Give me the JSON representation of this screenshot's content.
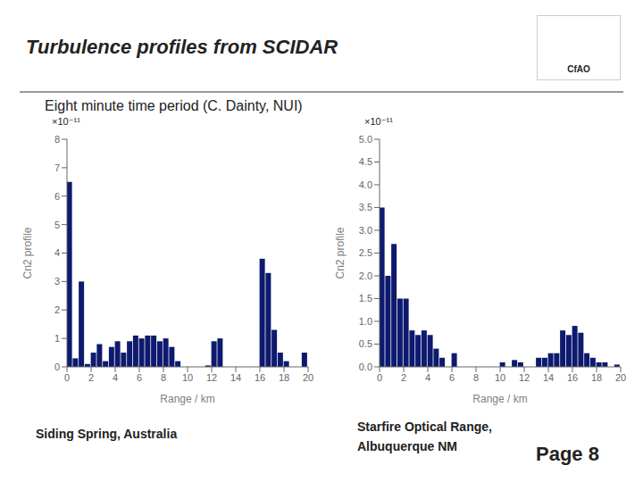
{
  "title": "Turbulence profiles from SCIDAR",
  "subtitle": "Eight minute time period (C. Dainty, NUI)",
  "annotations": [
    "CfAO",
    "Siding Spring, Australia",
    "Starfire Optical Range,",
    "Albuquerque NM",
    "Page 8"
  ],
  "chart_data": [
    {
      "type": "bar",
      "xlabel": "Range / km",
      "ylabel": "Cn2 profile",
      "annotations": [
        "×10⁻¹¹"
      ],
      "color": "#0d1a6e",
      "x": [
        0.0,
        0.5,
        1.0,
        1.5,
        2.0,
        2.5,
        3.0,
        3.5,
        4.0,
        4.5,
        5.0,
        5.5,
        6.0,
        6.5,
        7.0,
        7.5,
        8.0,
        8.5,
        9.0,
        9.5,
        10.0,
        10.5,
        11.0,
        11.5,
        12.0,
        12.5,
        13.0,
        13.5,
        14.0,
        14.5,
        15.0,
        15.5,
        16.0,
        16.5,
        17.0,
        17.5,
        18.0,
        18.5,
        19.0,
        19.5
      ],
      "values": [
        6.5,
        0.3,
        3.0,
        0.1,
        0.5,
        0.8,
        0.2,
        0.7,
        0.9,
        0.5,
        0.9,
        1.1,
        1.0,
        1.1,
        1.1,
        0.9,
        1.0,
        0.7,
        0.2,
        0.0,
        0.0,
        0.0,
        0.0,
        0.05,
        0.9,
        1.0,
        0.0,
        0.0,
        0.0,
        0.0,
        0.0,
        0.0,
        3.8,
        3.3,
        1.3,
        0.5,
        0.2,
        0.0,
        0.0,
        0.5
      ],
      "xlim": [
        0,
        20
      ],
      "ylim": [
        0,
        8
      ],
      "xticks": [
        0,
        2,
        4,
        6,
        8,
        10,
        12,
        14,
        16,
        18,
        20
      ],
      "yticks": [
        0,
        1,
        2,
        3,
        4,
        5,
        6,
        7,
        8
      ],
      "grid": false
    },
    {
      "type": "bar",
      "xlabel": "Range / km",
      "ylabel": "Cn2 profile",
      "annotations": [
        "×10⁻¹¹"
      ],
      "color": "#0d1a6e",
      "x": [
        0.0,
        0.5,
        1.0,
        1.5,
        2.0,
        2.5,
        3.0,
        3.5,
        4.0,
        4.5,
        5.0,
        5.5,
        6.0,
        6.5,
        7.0,
        7.5,
        8.0,
        8.5,
        9.0,
        9.5,
        10.0,
        10.5,
        11.0,
        11.5,
        12.0,
        12.5,
        13.0,
        13.5,
        14.0,
        14.5,
        15.0,
        15.5,
        16.0,
        16.5,
        17.0,
        17.5,
        18.0,
        18.5,
        19.0,
        19.5
      ],
      "values": [
        3.5,
        2.0,
        2.7,
        1.5,
        1.5,
        0.8,
        0.7,
        0.8,
        0.7,
        0.4,
        0.2,
        0.0,
        0.3,
        0.0,
        0.0,
        0.0,
        0.0,
        0.0,
        0.0,
        0.0,
        0.1,
        0.0,
        0.15,
        0.1,
        0.0,
        0.0,
        0.2,
        0.2,
        0.3,
        0.3,
        0.8,
        0.7,
        0.9,
        0.75,
        0.3,
        0.2,
        0.1,
        0.1,
        0.0,
        0.05
      ],
      "xlim": [
        0,
        20
      ],
      "ylim": [
        0,
        5
      ],
      "xticks": [
        0,
        2,
        4,
        6,
        8,
        10,
        12,
        14,
        16,
        18,
        20
      ],
      "yticks": [
        {
          "value": 0,
          "label": "0.0"
        },
        0.5,
        {
          "value": 1,
          "label": "1.0"
        },
        1.5,
        {
          "value": 2,
          "label": "2.0"
        },
        2.5,
        {
          "value": 3,
          "label": "3.0"
        },
        3.5,
        {
          "value": 4,
          "label": "4.0"
        },
        4.5,
        {
          "value": 5,
          "label": "5.0"
        }
      ],
      "grid": false
    }
  ]
}
